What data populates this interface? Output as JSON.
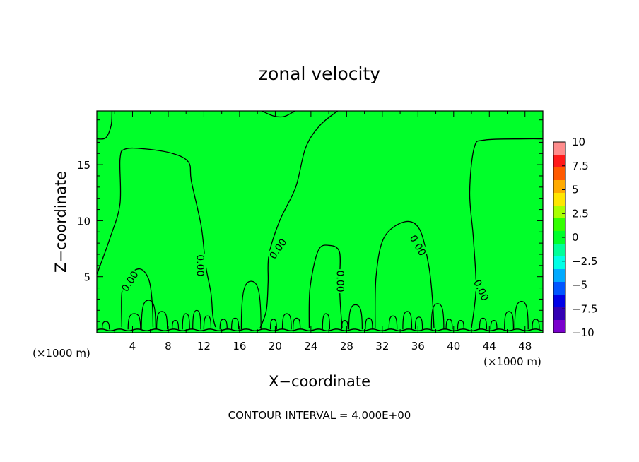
{
  "chart_data": {
    "type": "contour",
    "title": "zonal velocity",
    "xlabel": "X−coordinate",
    "ylabel": "Z−coordinate",
    "x_unit_left": "(×1000 m)",
    "x_unit_right": "(×1000 m)",
    "footer": "CONTOUR INTERVAL = 4.000E+00",
    "xlim": [
      0,
      50
    ],
    "ylim": [
      0,
      19.8
    ],
    "x_ticks": [
      4,
      8,
      12,
      16,
      20,
      24,
      28,
      32,
      36,
      40,
      44,
      48
    ],
    "x_tick_labels": [
      "4",
      "8",
      "12",
      "16",
      "20",
      "24",
      "28",
      "32",
      "36",
      "40",
      "44",
      "48"
    ],
    "y_ticks": [
      5,
      10,
      15
    ],
    "y_tick_labels": [
      "5",
      "10",
      "15"
    ],
    "contour_levels": [
      0
    ],
    "contour_label": "0.00",
    "field_color": "#00ff2a",
    "colorbar": {
      "ticks": [
        "10",
        "7.5",
        "5",
        "2.5",
        "0",
        "−2.5",
        "−5",
        "−7.5",
        "−10"
      ],
      "colors": [
        "#ff8c8c",
        "#ff1a1a",
        "#ff5a00",
        "#ffaa00",
        "#ffe600",
        "#aaff00",
        "#33ff00",
        "#00ff2a",
        "#00ff99",
        "#00ffe6",
        "#00aaff",
        "#0055ff",
        "#0000e6",
        "#3300b3",
        "#7a00cc"
      ]
    },
    "contours": [
      {
        "name": "zero-contour-left-dome",
        "points": [
          [
            0,
            5.2
          ],
          [
            1.5,
            8.5
          ],
          [
            2.6,
            11.5
          ],
          [
            2.6,
            15.5
          ],
          [
            3.2,
            16.4
          ],
          [
            5.5,
            16.4
          ],
          [
            8.5,
            16
          ],
          [
            10.3,
            15.2
          ],
          [
            10.6,
            13.5
          ],
          [
            11.7,
            9.5
          ],
          [
            12.2,
            6
          ],
          [
            12.8,
            3.5
          ],
          [
            13,
            1.5
          ],
          [
            13.3,
            0.5
          ]
        ]
      },
      {
        "name": "zero-contour-inner-left",
        "points": [
          [
            2.8,
            0.5
          ],
          [
            2.8,
            3.5
          ],
          [
            3.4,
            5
          ],
          [
            4.8,
            5.7
          ],
          [
            5.8,
            4.8
          ],
          [
            6.2,
            2.8
          ],
          [
            6.3,
            0.5
          ]
        ]
      },
      {
        "name": "zero-contour-center",
        "points": [
          [
            18.3,
            0.4
          ],
          [
            19,
            2
          ],
          [
            19.2,
            4.5
          ],
          [
            19.3,
            7
          ],
          [
            20.5,
            10
          ],
          [
            22.3,
            13
          ],
          [
            23.4,
            16.5
          ],
          [
            25,
            18.5
          ],
          [
            27,
            19.8
          ]
        ]
      },
      {
        "name": "zero-contour-dome-26",
        "points": [
          [
            23.8,
            0.4
          ],
          [
            23.9,
            4
          ],
          [
            24.8,
            7.3
          ],
          [
            26,
            7.8
          ],
          [
            27.2,
            7.2
          ],
          [
            27.2,
            4.5
          ],
          [
            27.3,
            2.5
          ],
          [
            27.5,
            0.4
          ]
        ]
      },
      {
        "name": "zero-contour-dome-34",
        "points": [
          [
            31.2,
            0.4
          ],
          [
            31.3,
            5
          ],
          [
            32.2,
            8.5
          ],
          [
            34.5,
            9.9
          ],
          [
            36.2,
            9.2
          ],
          [
            37.2,
            6
          ],
          [
            37.6,
            3.2
          ],
          [
            37.8,
            0.4
          ]
        ]
      },
      {
        "name": "zero-contour-right-dome",
        "points": [
          [
            42,
            0.4
          ],
          [
            42.5,
            4
          ],
          [
            42.2,
            8.5
          ],
          [
            41.8,
            12.5
          ],
          [
            42.3,
            16.5
          ],
          [
            43.5,
            17.2
          ],
          [
            48,
            17.3
          ],
          [
            50,
            17.3
          ]
        ]
      },
      {
        "name": "zero-contour-top-center",
        "points": [
          [
            18.5,
            19.8
          ],
          [
            19.8,
            19.35
          ],
          [
            21,
            19.3
          ],
          [
            22.2,
            19.8
          ]
        ]
      },
      {
        "name": "zero-contour-top-left",
        "points": [
          [
            0,
            17.3
          ],
          [
            1,
            17.4
          ],
          [
            1.6,
            18.5
          ],
          [
            1.7,
            19.8
          ]
        ]
      }
    ],
    "bumps": [
      {
        "x": 1,
        "h": 0.7,
        "w": 0.8
      },
      {
        "x": 4.2,
        "h": 1.4,
        "w": 1.4
      },
      {
        "x": 5.8,
        "h": 2.6,
        "w": 1.6
      },
      {
        "x": 7.3,
        "h": 1.6,
        "w": 1.2
      },
      {
        "x": 8.8,
        "h": 0.8,
        "w": 0.7
      },
      {
        "x": 10,
        "h": 1.4,
        "w": 0.8
      },
      {
        "x": 11.2,
        "h": 1.7,
        "w": 0.9
      },
      {
        "x": 12.4,
        "h": 1.2,
        "w": 0.8
      },
      {
        "x": 14.2,
        "h": 0.9,
        "w": 0.8
      },
      {
        "x": 15.5,
        "h": 1,
        "w": 0.8
      },
      {
        "x": 17.3,
        "h": 4.3,
        "w": 2.2
      },
      {
        "x": 19.8,
        "h": 0.9,
        "w": 0.7
      },
      {
        "x": 21.3,
        "h": 1.4,
        "w": 1
      },
      {
        "x": 22.4,
        "h": 1,
        "w": 0.8
      },
      {
        "x": 25.7,
        "h": 1.4,
        "w": 0.8
      },
      {
        "x": 27.8,
        "h": 0.8,
        "w": 0.7
      },
      {
        "x": 29,
        "h": 2.2,
        "w": 1.5
      },
      {
        "x": 30.5,
        "h": 1,
        "w": 0.8
      },
      {
        "x": 33.2,
        "h": 1.2,
        "w": 0.9
      },
      {
        "x": 34.8,
        "h": 1.6,
        "w": 1
      },
      {
        "x": 36.1,
        "h": 1.1,
        "w": 0.8
      },
      {
        "x": 38.2,
        "h": 2.3,
        "w": 1.4
      },
      {
        "x": 39.5,
        "h": 0.9,
        "w": 0.7
      },
      {
        "x": 40.8,
        "h": 0.8,
        "w": 0.7
      },
      {
        "x": 43.3,
        "h": 1,
        "w": 0.8
      },
      {
        "x": 44.5,
        "h": 0.8,
        "w": 0.7
      },
      {
        "x": 46.2,
        "h": 1.6,
        "w": 1
      },
      {
        "x": 47.6,
        "h": 2.5,
        "w": 1.5
      },
      {
        "x": 49.2,
        "h": 0.9,
        "w": 0.8
      }
    ],
    "label_positions": [
      {
        "x": 3.7,
        "y": 4.6,
        "angle": -58
      },
      {
        "x": 11.6,
        "y": 6.0,
        "angle": 90
      },
      {
        "x": 20.3,
        "y": 7.5,
        "angle": -55
      },
      {
        "x": 27.3,
        "y": 4.6,
        "angle": 90
      },
      {
        "x": 36.0,
        "y": 7.8,
        "angle": 60
      },
      {
        "x": 43.1,
        "y": 3.8,
        "angle": 65
      }
    ]
  }
}
